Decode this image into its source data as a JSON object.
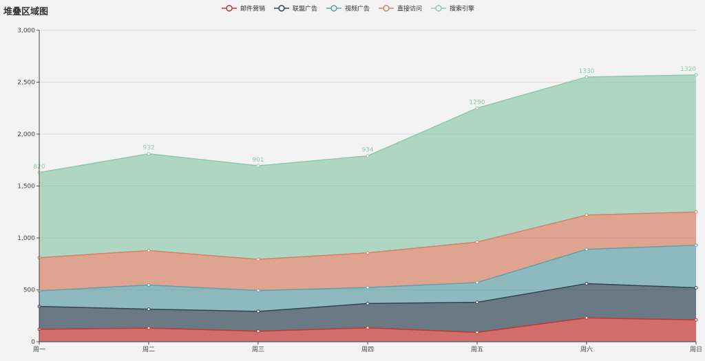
{
  "title": "堆叠区域图",
  "chart_data": {
    "type": "area",
    "stacked": true,
    "categories": [
      "周一",
      "周二",
      "周三",
      "周四",
      "周五",
      "周六",
      "周日"
    ],
    "series": [
      {
        "name": "邮件营销",
        "color": "#c23531",
        "values": [
          120,
          132,
          101,
          134,
          90,
          230,
          210
        ]
      },
      {
        "name": "联盟广告",
        "color": "#2f4554",
        "values": [
          220,
          182,
          191,
          234,
          290,
          330,
          310
        ]
      },
      {
        "name": "视频广告",
        "color": "#61a0a8",
        "values": [
          150,
          232,
          201,
          154,
          190,
          330,
          410
        ]
      },
      {
        "name": "直接访问",
        "color": "#d48265",
        "values": [
          320,
          332,
          301,
          334,
          390,
          330,
          320
        ]
      },
      {
        "name": "搜索引擎",
        "color": "#91c7ae",
        "values": [
          820,
          932,
          901,
          934,
          1290,
          1330,
          1320
        ]
      }
    ],
    "top_labels": [
      "820",
      "932",
      "901",
      "934",
      "1290",
      "1330",
      "1320"
    ],
    "ylim": [
      0,
      3000
    ],
    "yticks": [
      0,
      500,
      1000,
      1500,
      2000,
      2500,
      3000
    ],
    "ytick_labels": [
      "0",
      "500",
      "1,000",
      "1,500",
      "2,000",
      "2,500",
      "3,000"
    ],
    "grid": true,
    "legend_position": "top-center"
  }
}
